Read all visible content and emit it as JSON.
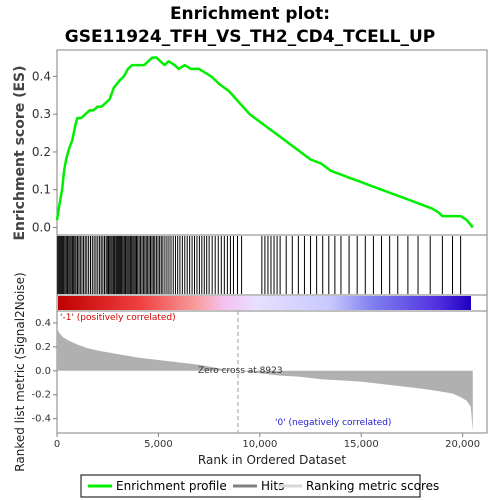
{
  "title_lines": [
    "Enrichment plot:",
    "GSE11924_TFH_VS_TH2_CD4_TCELL_UP"
  ],
  "colors": {
    "es_line": "#00ee00",
    "hits": "#000000",
    "metric_fill": "#b0b0b0",
    "zero_cross_line": "#a0a0a0",
    "pos_label": "#d40000",
    "neg_label": "#2020d0",
    "bar_pos": "#ff0000",
    "bar_neg": "#0000cc"
  },
  "chart_data": [
    {
      "type": "line",
      "panel": "enrichment",
      "ylabel": "Enrichment score (ES)",
      "xlim": [
        0,
        21200
      ],
      "ylim": [
        -0.02,
        0.47
      ],
      "yticks": [
        0.0,
        0.1,
        0.2,
        0.3,
        0.4
      ],
      "ytick_labels": [
        "0.0",
        "0.1",
        "0.2",
        "0.3",
        "0.4"
      ],
      "grid": false,
      "series": [
        {
          "name": "Enrichment profile",
          "x": [
            0,
            120,
            250,
            350,
            450,
            600,
            750,
            900,
            1000,
            1200,
            1400,
            1600,
            1800,
            2000,
            2200,
            2400,
            2600,
            2800,
            2950,
            3100,
            3300,
            3500,
            3700,
            3900,
            4100,
            4300,
            4500,
            4700,
            4900,
            5100,
            5300,
            5500,
            5800,
            6000,
            6300,
            6600,
            7000,
            7300,
            7600,
            8000,
            8500,
            9000,
            9500,
            10000,
            10500,
            11000,
            11500,
            12000,
            12500,
            13000,
            13500,
            14000,
            14500,
            15000,
            15500,
            16000,
            16500,
            17000,
            17500,
            18000,
            18500,
            18800,
            19000,
            19300,
            19600,
            19900,
            20200,
            20500
          ],
          "y": [
            0.02,
            0.06,
            0.1,
            0.15,
            0.18,
            0.21,
            0.23,
            0.27,
            0.29,
            0.29,
            0.3,
            0.31,
            0.31,
            0.32,
            0.32,
            0.33,
            0.34,
            0.37,
            0.38,
            0.39,
            0.4,
            0.42,
            0.43,
            0.43,
            0.43,
            0.43,
            0.44,
            0.45,
            0.45,
            0.44,
            0.43,
            0.44,
            0.43,
            0.42,
            0.43,
            0.42,
            0.42,
            0.41,
            0.4,
            0.38,
            0.36,
            0.33,
            0.3,
            0.28,
            0.26,
            0.24,
            0.22,
            0.2,
            0.18,
            0.17,
            0.15,
            0.14,
            0.13,
            0.12,
            0.11,
            0.1,
            0.09,
            0.08,
            0.07,
            0.06,
            0.05,
            0.04,
            0.03,
            0.03,
            0.03,
            0.03,
            0.02,
            0.0
          ]
        }
      ]
    },
    {
      "type": "barcode",
      "panel": "hits",
      "name": "Hits",
      "xlim": [
        0,
        21200
      ],
      "positions": [
        40,
        90,
        140,
        190,
        240,
        290,
        340,
        400,
        460,
        520,
        580,
        640,
        700,
        760,
        820,
        880,
        940,
        1010,
        1080,
        1150,
        1230,
        1310,
        1390,
        1470,
        1560,
        1650,
        1740,
        1830,
        1920,
        2010,
        2100,
        2180,
        2260,
        2340,
        2420,
        2480,
        2540,
        2600,
        2660,
        2720,
        2780,
        2840,
        2900,
        2950,
        3000,
        3050,
        3100,
        3150,
        3200,
        3260,
        3320,
        3380,
        3440,
        3500,
        3560,
        3620,
        3680,
        3740,
        3800,
        3860,
        3920,
        3980,
        4050,
        4120,
        4190,
        4260,
        4330,
        4400,
        4470,
        4540,
        4610,
        4680,
        4750,
        4820,
        4900,
        4980,
        5060,
        5140,
        5220,
        5320,
        5420,
        5520,
        5620,
        5730,
        5840,
        5950,
        6060,
        6180,
        6300,
        6420,
        6540,
        6660,
        6780,
        6900,
        7020,
        7140,
        7260,
        7380,
        7500,
        7650,
        7800,
        7950,
        8100,
        8250,
        8400,
        8550,
        8700,
        8900,
        9100,
        10100,
        10250,
        10400,
        10550,
        10700,
        10850,
        11000,
        11300,
        11600,
        11900,
        12200,
        12500,
        12800,
        13100,
        13400,
        13700,
        14000,
        14400,
        14800,
        15200,
        15600,
        16000,
        16400,
        16800,
        17300,
        17800,
        18400,
        19000,
        19500,
        19900
      ]
    },
    {
      "type": "area",
      "panel": "ranked_metric",
      "ylabel": "Ranked list metric (Signal2Noise)",
      "xlabel": "Rank in Ordered Dataset",
      "xlim": [
        0,
        21200
      ],
      "ylim": [
        -0.52,
        0.5
      ],
      "xticks": [
        0,
        5000,
        10000,
        15000,
        20000
      ],
      "xtick_labels": [
        "0",
        "5,000",
        "10,000",
        "15,000",
        "20,000"
      ],
      "yticks": [
        -0.4,
        -0.2,
        0.0,
        0.2,
        0.4
      ],
      "ytick_labels": [
        "-0.4",
        "-0.2",
        "0.0",
        "0.2",
        "0.4"
      ],
      "x": [
        0,
        100,
        300,
        600,
        1000,
        1500,
        2000,
        3000,
        4000,
        5000,
        6000,
        7000,
        8000,
        8923,
        10000,
        11000,
        12000,
        13000,
        14000,
        15000,
        16000,
        17000,
        18000,
        18800,
        19500,
        19900,
        20200,
        20400,
        20500
      ],
      "y": [
        0.36,
        0.32,
        0.28,
        0.25,
        0.22,
        0.19,
        0.17,
        0.14,
        0.11,
        0.09,
        0.07,
        0.05,
        0.02,
        0.0,
        -0.02,
        -0.04,
        -0.05,
        -0.07,
        -0.08,
        -0.09,
        -0.11,
        -0.13,
        -0.15,
        -0.17,
        -0.19,
        -0.22,
        -0.25,
        -0.3,
        -0.5
      ],
      "zero_cross_rank": 8923,
      "annotations": {
        "positive": "'-1' (positively correlated)",
        "negative": "'0' (negatively correlated)",
        "zero_cross": "Zero cross at 8923"
      }
    }
  ],
  "legend": {
    "items": [
      {
        "label": "Enrichment profile",
        "color": "#00ee00"
      },
      {
        "label": "Hits",
        "color": "#808080"
      },
      {
        "label": "Ranking metric scores",
        "color": "#d8d8d8"
      }
    ]
  }
}
